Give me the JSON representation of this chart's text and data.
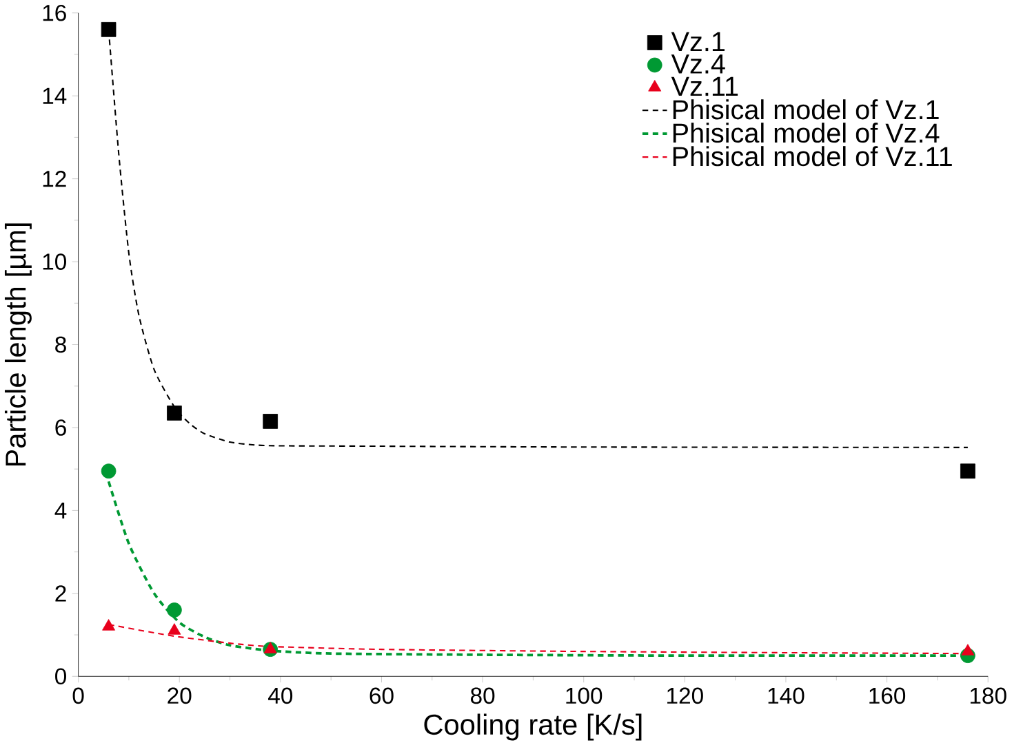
{
  "chart_data": {
    "type": "scatter",
    "xlabel": "Cooling rate [K/s]",
    "ylabel": "Particle length [µm]",
    "xlim": [
      0,
      180
    ],
    "xticks": [
      0,
      20,
      40,
      60,
      80,
      100,
      120,
      140,
      160,
      180
    ],
    "ylim": [
      0,
      16
    ],
    "yticks": [
      0,
      2,
      4,
      6,
      8,
      10,
      12,
      14,
      16
    ],
    "legend": "top right",
    "grid": false,
    "series": [
      {
        "name": "Vz.1",
        "marker": "square",
        "color": "#000000",
        "x": [
          6,
          19,
          38,
          176
        ],
        "values": [
          15.6,
          6.35,
          6.15,
          4.95
        ]
      },
      {
        "name": "Vz.4",
        "marker": "circle",
        "color": "#009933",
        "x": [
          6,
          19,
          38,
          176
        ],
        "values": [
          4.95,
          1.6,
          0.65,
          0.5
        ]
      },
      {
        "name": "Vz.11",
        "marker": "triangle",
        "color": "#e8001c",
        "x": [
          6,
          19,
          38,
          176
        ],
        "values": [
          1.2,
          1.1,
          0.65,
          0.6
        ]
      },
      {
        "name": "Phisical model of Vz.1",
        "type": "line",
        "line_style": "dashed",
        "color": "#000000",
        "x": [
          6,
          8,
          10,
          12,
          15,
          19,
          22,
          25,
          30,
          35,
          40,
          60,
          100,
          176
        ],
        "values": [
          15.6,
          12.6,
          10.2,
          8.7,
          7.4,
          6.5,
          6.1,
          5.85,
          5.65,
          5.58,
          5.56,
          5.55,
          5.53,
          5.52
        ]
      },
      {
        "name": "Phisical model of Vz.4",
        "type": "line",
        "line_style": "dashed",
        "color": "#009933",
        "x": [
          6,
          10,
          15,
          20,
          25,
          30,
          38,
          50,
          80,
          120,
          176
        ],
        "values": [
          4.7,
          3.2,
          2.0,
          1.3,
          0.95,
          0.75,
          0.62,
          0.55,
          0.52,
          0.5,
          0.5
        ]
      },
      {
        "name": "Phisical model of Vz.11",
        "type": "line",
        "line_style": "dashed",
        "color": "#e8001c",
        "x": [
          6,
          15,
          20,
          30,
          38,
          60,
          100,
          140,
          176
        ],
        "values": [
          1.25,
          1.05,
          0.95,
          0.8,
          0.72,
          0.65,
          0.6,
          0.57,
          0.55
        ]
      }
    ]
  }
}
